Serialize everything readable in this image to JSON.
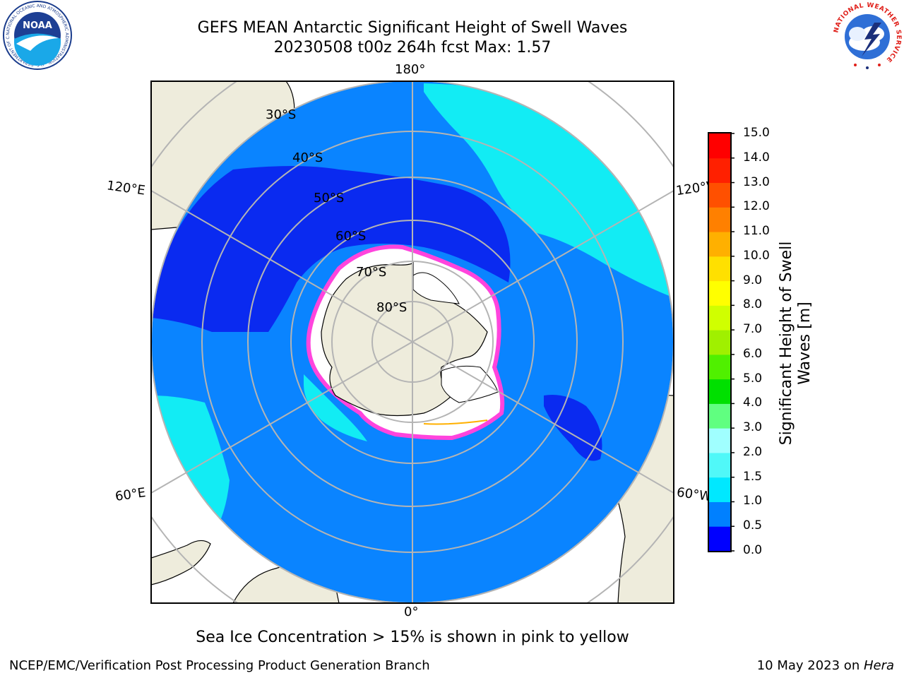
{
  "header": {
    "title_line1": "GEFS MEAN Antarctic Significant Height of Swell Waves",
    "title_line2": "20230508 t00z 264h fcst   Max: 1.57"
  },
  "logos": {
    "noaa_text": "NOAA",
    "noaa_ring_text": "NATIONAL OCEANIC AND ATMOSPHERIC ADMINISTRATION · U.S. DEPARTMENT OF COMMERCE",
    "nws_ring_text": "NATIONAL WEATHER SERVICE"
  },
  "map": {
    "longitude_labels": {
      "top": "180°",
      "bottom": "0°",
      "upper_left": "120°E",
      "upper_right": "120°W",
      "lower_left": "60°E",
      "lower_right": "60°W"
    },
    "latitude_labels": [
      "30°S",
      "40°S",
      "50°S",
      "60°S",
      "70°S",
      "80°S"
    ],
    "colors": {
      "land": "#eeecdc",
      "ocean_low": "#0a84ff",
      "ocean_deep": "#0a2af0",
      "ocean_cyan": "#12ecf4",
      "sea_ice": "#ffffff",
      "ice_edge": "#ff44dd",
      "grid": "#b4b4b4"
    }
  },
  "colorbar": {
    "label_line1": "Significant Height of Swell",
    "label_line2": "Waves [m]",
    "ticks": [
      "0.0",
      "0.5",
      "1.0",
      "1.5",
      "2.0",
      "3.0",
      "4.0",
      "5.0",
      "6.0",
      "7.0",
      "8.0",
      "9.0",
      "10.0",
      "11.0",
      "12.0",
      "13.0",
      "14.0",
      "15.0"
    ],
    "colors": [
      "#0000ff",
      "#0080ff",
      "#00e8ff",
      "#50f8f8",
      "#a0ffff",
      "#60ff80",
      "#00e000",
      "#50f000",
      "#a0f000",
      "#d0ff00",
      "#ffff00",
      "#ffe000",
      "#ffb000",
      "#ff8000",
      "#ff5000",
      "#ff2000",
      "#ff0000"
    ]
  },
  "note": "Sea Ice Concentration > 15% is shown in pink to yellow",
  "footer": {
    "left": "NCEP/EMC/Verification Post Processing Product Generation Branch",
    "right_date": "10 May 2023 on ",
    "right_host": "Hera"
  }
}
